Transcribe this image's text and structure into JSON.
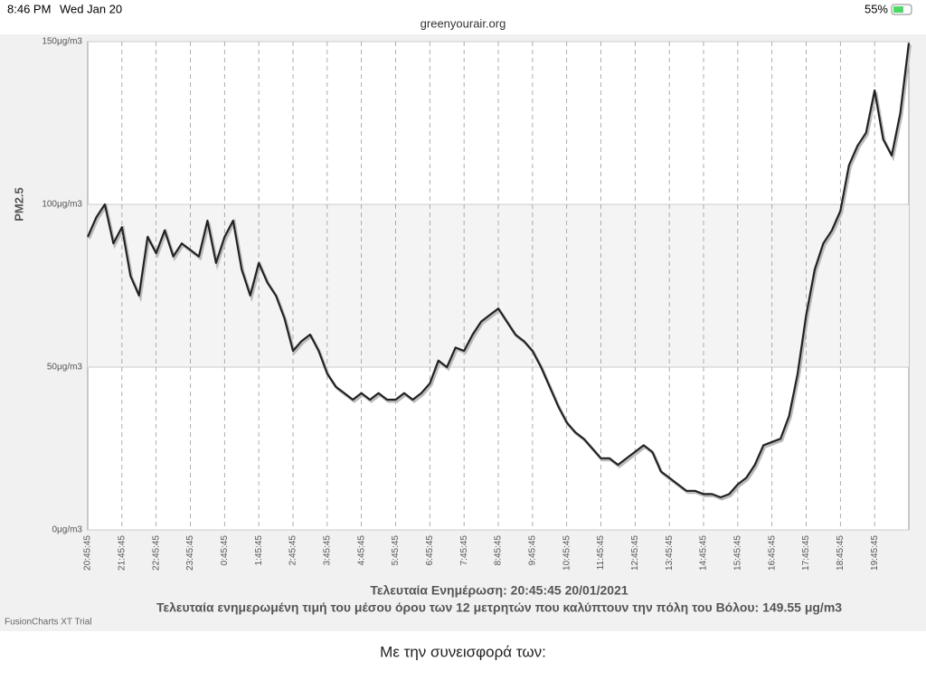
{
  "status_bar": {
    "time": "8:46 PM",
    "date": "Wed Jan 20",
    "url": "greenyourair.org",
    "battery": "55%"
  },
  "chart_data": {
    "type": "line",
    "y_axis_label": "PM2.5",
    "caption": "Τελευταία Ενημέρωση: 20:45:45 20/01/2021",
    "subcaption": "Τελευταία ενημερωμένη τιμή του μέσου όρου των 12 μετρητών που καλύπτουν την πόλη του Βόλου: 149.55 μg/m3",
    "color": "#222222",
    "grid": true,
    "ylim": [
      0,
      150
    ],
    "yticks": [
      {
        "value": 0,
        "label": "0μg/m3"
      },
      {
        "value": 50,
        "label": "50μg/m3"
      },
      {
        "value": 100,
        "label": "100μg/m3"
      },
      {
        "value": 150,
        "label": "150μg/m3"
      }
    ],
    "categories": [
      "20:45:45",
      null,
      null,
      null,
      "21:45:45",
      null,
      null,
      null,
      "22:45:45",
      null,
      null,
      null,
      "23:45:45",
      null,
      null,
      null,
      "0:45:45",
      null,
      null,
      null,
      "1:45:45",
      null,
      null,
      null,
      "2:45:45",
      null,
      null,
      null,
      "3:45:45",
      null,
      null,
      null,
      "4:45:45",
      null,
      null,
      null,
      "5:45:45",
      null,
      null,
      null,
      "6:45:45",
      null,
      null,
      null,
      "7:45:45",
      null,
      null,
      null,
      "8:45:45",
      null,
      null,
      null,
      "9:45:45",
      null,
      null,
      null,
      "10:45:45",
      null,
      null,
      null,
      "11:45:45",
      null,
      null,
      null,
      "12:45:45",
      null,
      null,
      null,
      "13:45:45",
      null,
      null,
      null,
      "14:45:45",
      null,
      null,
      null,
      "15:45:45",
      null,
      null,
      null,
      "16:45:45",
      null,
      null,
      null,
      "17:45:45",
      null,
      null,
      null,
      "18:45:45",
      null,
      null,
      null,
      "19:45:45",
      null,
      null,
      null,
      null
    ],
    "values": [
      90,
      96,
      100,
      88,
      93,
      78,
      72,
      90,
      85,
      92,
      84,
      88,
      86,
      84,
      95,
      82,
      90,
      95,
      80,
      72,
      82,
      76,
      72,
      65,
      55,
      58,
      60,
      55,
      48,
      44,
      42,
      40,
      42,
      40,
      42,
      40,
      40,
      42,
      40,
      42,
      45,
      52,
      50,
      56,
      55,
      60,
      64,
      66,
      68,
      64,
      60,
      58,
      55,
      50,
      44,
      38,
      33,
      30,
      28,
      25,
      22,
      22,
      20,
      22,
      24,
      26,
      24,
      18,
      16,
      14,
      12,
      12,
      11,
      11,
      10,
      11,
      14,
      16,
      20,
      26,
      27,
      28,
      35,
      48,
      66,
      80,
      88,
      92,
      98,
      112,
      118,
      122,
      135,
      120,
      115,
      128,
      149.55
    ]
  },
  "footer": {
    "credit": "FusionCharts XT Trial",
    "contributors": "Με την συνεισφορά των:"
  }
}
